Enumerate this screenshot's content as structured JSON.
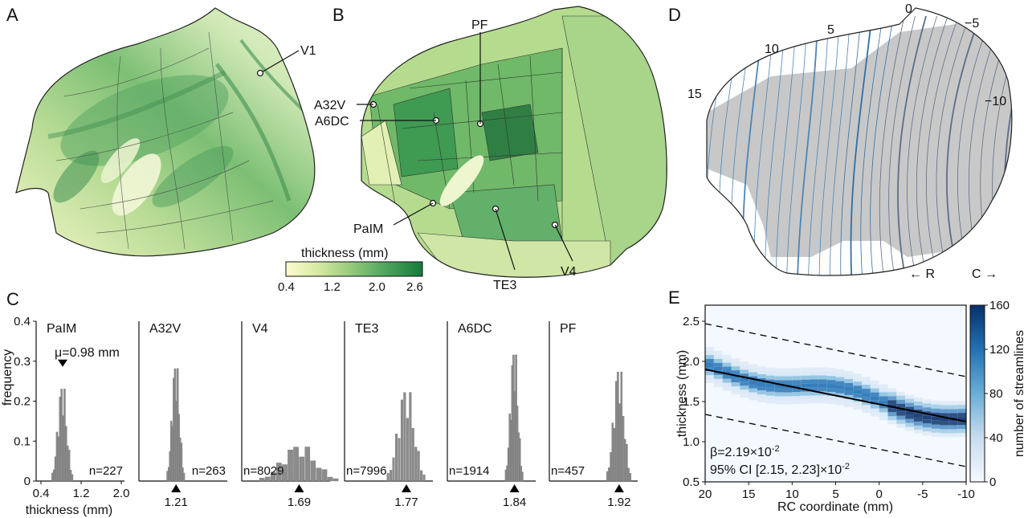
{
  "panel_letters": [
    "A",
    "B",
    "C",
    "D",
    "E"
  ],
  "panel_a": {
    "label": "V1"
  },
  "panel_b": {
    "labels": [
      "PF",
      "A32V",
      "A6DC",
      "PaIM",
      "TE3",
      "V4"
    ],
    "colorbar": {
      "title": "thickness (mm)",
      "ticks": [
        "0.4",
        "1.2",
        "2.0",
        "2.6"
      ],
      "colors": [
        "#fffbd0",
        "#d2e8a0",
        "#8dc777",
        "#49a25a",
        "#157a3c"
      ]
    }
  },
  "panel_d": {
    "contour_labels": [
      "0",
      "−5",
      "−10",
      "5",
      "10",
      "15"
    ],
    "direction_left": "← R",
    "direction_right": "C →"
  },
  "chart_data": [
    {
      "type": "bar",
      "panel": "C",
      "ylabel": "frequency",
      "xlabel": "thickness (mm)",
      "ylim": [
        0,
        0.4
      ],
      "yticks": [
        "0",
        "0.1",
        "0.2",
        "0.3",
        "0.4"
      ],
      "xticks": [
        "0.4",
        "1.2",
        "2.0"
      ],
      "annotation": "μ=0.98 mm",
      "subplots": [
        {
          "name": "PaIM",
          "mean": "0.98",
          "n": "n=227",
          "peak": 0.27
        },
        {
          "name": "A32V",
          "mean": "1.21",
          "n": "n=263",
          "peak": 0.33
        },
        {
          "name": "V4",
          "mean": "1.69",
          "n": "n=8029",
          "peak": 0.1
        },
        {
          "name": "TE3",
          "mean": "1.77",
          "n": "n=7996",
          "peak": 0.26
        },
        {
          "name": "A6DC",
          "mean": "1.84",
          "n": "n=1914",
          "peak": 0.37
        },
        {
          "name": "PF",
          "mean": "1.92",
          "n": "n=457",
          "peak": 0.32
        }
      ]
    },
    {
      "type": "heatmap",
      "panel": "E",
      "xlabel": "RC coordinate (mm)",
      "ylabel": "thickness (mm)",
      "xlim": [
        20,
        -10
      ],
      "ylim": [
        0.5,
        2.7
      ],
      "xticks": [
        "20",
        "15",
        "10",
        "5",
        "0",
        "-5",
        "-10"
      ],
      "yticks": [
        "0.5",
        "1.0",
        "1.5",
        "2.0",
        "2.5"
      ],
      "fit_line": {
        "x": [
          20,
          -10
        ],
        "y": [
          1.9,
          1.25
        ]
      },
      "interval_upper": {
        "x": [
          20,
          -10
        ],
        "y": [
          2.47,
          1.81
        ]
      },
      "interval_lower": {
        "x": [
          20,
          -10
        ],
        "y": [
          1.34,
          0.69
        ]
      },
      "beta": "β=2.19×10",
      "beta_exp": "-2",
      "ci": "95% CI [2.15, 2.23]×10",
      "ci_exp": "-2",
      "colorbar": {
        "label": "number of streamlines",
        "ticks": [
          "0",
          "40",
          "80",
          "120",
          "160"
        ],
        "range": [
          0,
          160
        ],
        "colors": [
          "#f4f9ff",
          "#c7dcef",
          "#6aaed6",
          "#2171b5",
          "#08306b"
        ]
      }
    }
  ]
}
